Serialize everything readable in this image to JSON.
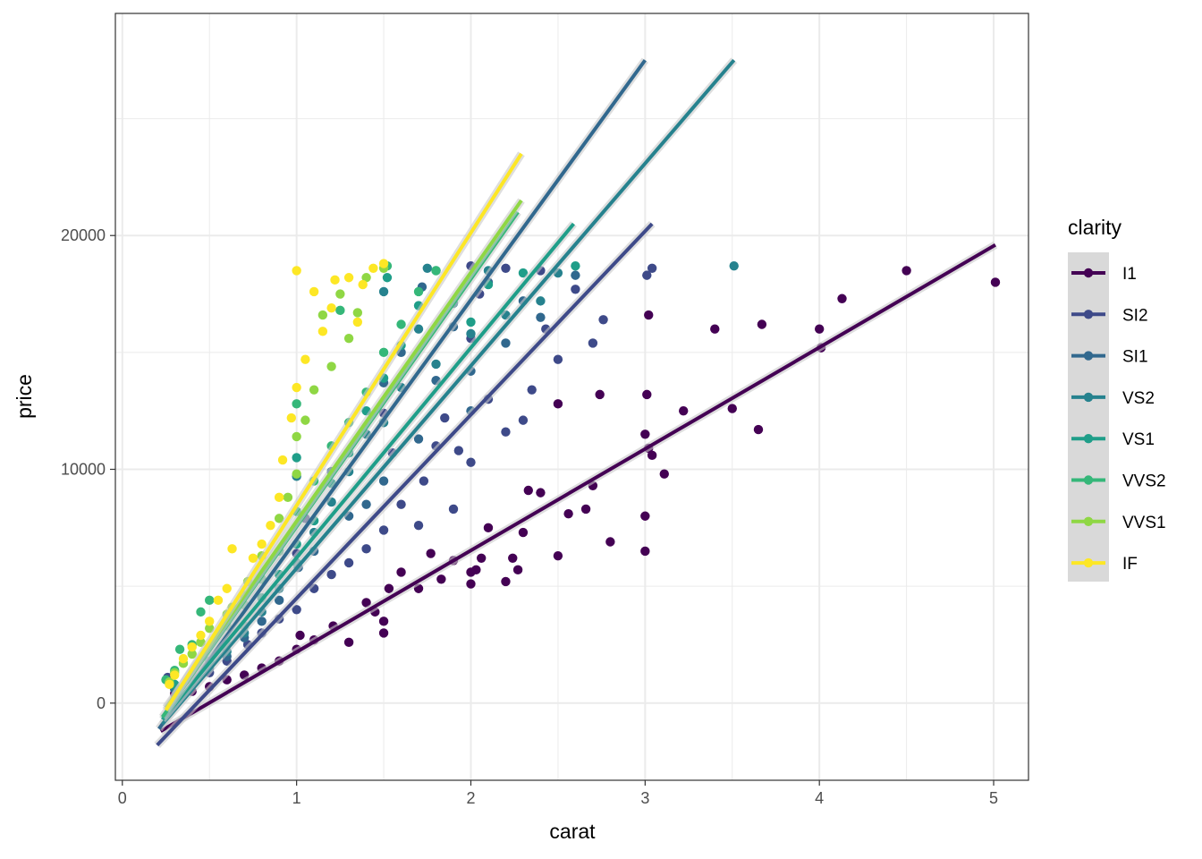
{
  "chart_data": {
    "type": "scatter",
    "title": "",
    "xlabel": "carat",
    "ylabel": "price",
    "xlim": [
      -0.04,
      5.2
    ],
    "ylim": [
      -3300,
      29500
    ],
    "xticks": [
      0,
      1,
      2,
      3,
      4,
      5
    ],
    "xtick_labels": [
      "0",
      "1",
      "2",
      "3",
      "4",
      "5"
    ],
    "yticks": [
      0,
      10000,
      20000
    ],
    "ytick_labels": [
      "0",
      "10000",
      "20000"
    ],
    "grid": true,
    "legend": {
      "title": "clarity",
      "position": "right"
    },
    "series": [
      {
        "name": "I1",
        "color": "#440154",
        "fit": {
          "x": [
            0.22,
            5.01
          ],
          "y": [
            -1200,
            19600
          ]
        },
        "points": [
          [
            5.01,
            18000
          ],
          [
            4.5,
            18500
          ],
          [
            4.13,
            17300
          ],
          [
            4.01,
            15200
          ],
          [
            4.0,
            16000
          ],
          [
            3.67,
            16200
          ],
          [
            3.65,
            11700
          ],
          [
            3.5,
            12600
          ],
          [
            3.4,
            16000
          ],
          [
            3.22,
            12500
          ],
          [
            3.11,
            9800
          ],
          [
            3.04,
            10600
          ],
          [
            3.01,
            13200
          ],
          [
            3.02,
            10900
          ],
          [
            3.0,
            8000
          ],
          [
            3.0,
            6500
          ],
          [
            3.02,
            16600
          ],
          [
            3.0,
            11500
          ],
          [
            2.8,
            6900
          ],
          [
            2.74,
            13200
          ],
          [
            2.66,
            8300
          ],
          [
            2.7,
            9300
          ],
          [
            2.5,
            6300
          ],
          [
            2.56,
            8100
          ],
          [
            2.5,
            12800
          ],
          [
            2.4,
            9000
          ],
          [
            2.33,
            9100
          ],
          [
            2.3,
            7300
          ],
          [
            2.27,
            5700
          ],
          [
            2.24,
            6200
          ],
          [
            2.2,
            5200
          ],
          [
            2.1,
            7500
          ],
          [
            2.06,
            6200
          ],
          [
            2.03,
            5700
          ],
          [
            2.0,
            5100
          ],
          [
            2.0,
            5600
          ],
          [
            1.9,
            6100
          ],
          [
            1.83,
            5300
          ],
          [
            1.77,
            6400
          ],
          [
            1.7,
            4900
          ],
          [
            1.6,
            5600
          ],
          [
            1.53,
            4900
          ],
          [
            1.5,
            3000
          ],
          [
            1.5,
            3500
          ],
          [
            1.45,
            3900
          ],
          [
            1.4,
            4300
          ],
          [
            1.3,
            2600
          ],
          [
            1.21,
            3300
          ],
          [
            1.1,
            2700
          ],
          [
            1.02,
            2900
          ],
          [
            1.0,
            2300
          ],
          [
            0.9,
            1800
          ],
          [
            0.8,
            1500
          ],
          [
            0.7,
            1200
          ],
          [
            0.6,
            1000
          ],
          [
            0.5,
            700
          ],
          [
            0.4,
            500
          ],
          [
            0.3,
            400
          ]
        ]
      },
      {
        "name": "SI2",
        "color": "#3E4A89",
        "fit": {
          "x": [
            0.2,
            3.04
          ],
          "y": [
            -1800,
            20500
          ]
        },
        "points": [
          [
            3.04,
            18600
          ],
          [
            3.01,
            18300
          ],
          [
            2.76,
            16400
          ],
          [
            2.7,
            15400
          ],
          [
            2.6,
            17700
          ],
          [
            2.5,
            14700
          ],
          [
            2.43,
            16000
          ],
          [
            2.4,
            18500
          ],
          [
            2.35,
            13400
          ],
          [
            2.3,
            12100
          ],
          [
            2.2,
            11600
          ],
          [
            2.2,
            18600
          ],
          [
            2.1,
            13000
          ],
          [
            2.05,
            17500
          ],
          [
            2.0,
            15600
          ],
          [
            2.0,
            10300
          ],
          [
            2.0,
            18700
          ],
          [
            1.93,
            10800
          ],
          [
            1.9,
            8300
          ],
          [
            1.85,
            12200
          ],
          [
            1.8,
            11000
          ],
          [
            1.73,
            9500
          ],
          [
            1.7,
            7600
          ],
          [
            1.6,
            8500
          ],
          [
            1.55,
            10700
          ],
          [
            1.5,
            7400
          ],
          [
            1.5,
            12400
          ],
          [
            1.4,
            6600
          ],
          [
            1.3,
            6000
          ],
          [
            1.2,
            5500
          ],
          [
            1.1,
            4900
          ],
          [
            1.05,
            7900
          ],
          [
            1.0,
            4000
          ],
          [
            1.0,
            6400
          ],
          [
            0.9,
            3600
          ],
          [
            0.8,
            3000
          ],
          [
            0.72,
            2500
          ],
          [
            0.6,
            1800
          ],
          [
            0.5,
            1300
          ],
          [
            0.4,
            900
          ],
          [
            0.3,
            700
          ],
          [
            0.26,
            1100
          ]
        ]
      },
      {
        "name": "SI1",
        "color": "#31688E",
        "fit": {
          "x": [
            0.21,
            3.0
          ],
          "y": [
            -1100,
            27500
          ]
        },
        "points": [
          [
            2.6,
            18300
          ],
          [
            2.4,
            16500
          ],
          [
            2.3,
            17200
          ],
          [
            2.2,
            15400
          ],
          [
            2.1,
            18000
          ],
          [
            2.0,
            14200
          ],
          [
            2.0,
            12500
          ],
          [
            1.9,
            16100
          ],
          [
            1.8,
            13800
          ],
          [
            1.72,
            17800
          ],
          [
            1.7,
            11300
          ],
          [
            1.6,
            15000
          ],
          [
            1.5,
            9500
          ],
          [
            1.5,
            13700
          ],
          [
            1.4,
            8500
          ],
          [
            1.3,
            8000
          ],
          [
            1.2,
            9900
          ],
          [
            1.1,
            6500
          ],
          [
            1.01,
            5800
          ],
          [
            0.9,
            4400
          ],
          [
            0.8,
            3500
          ],
          [
            0.7,
            2800
          ],
          [
            0.6,
            2000
          ],
          [
            0.5,
            1500
          ],
          [
            0.4,
            1000
          ],
          [
            0.3,
            600
          ]
        ]
      },
      {
        "name": "VS2",
        "color": "#26828E",
        "fit": {
          "x": [
            0.23,
            3.51
          ],
          "y": [
            -900,
            27500
          ]
        },
        "points": [
          [
            3.51,
            18700
          ],
          [
            2.5,
            18400
          ],
          [
            2.4,
            17200
          ],
          [
            2.2,
            16600
          ],
          [
            2.1,
            18500
          ],
          [
            2.0,
            15800
          ],
          [
            1.9,
            17100
          ],
          [
            1.8,
            14500
          ],
          [
            1.75,
            18600
          ],
          [
            1.7,
            16000
          ],
          [
            1.6,
            13500
          ],
          [
            1.5,
            12000
          ],
          [
            1.5,
            17600
          ],
          [
            1.4,
            11500
          ],
          [
            1.3,
            9900
          ],
          [
            1.2,
            8600
          ],
          [
            1.1,
            7300
          ],
          [
            1.0,
            6000
          ],
          [
            1.0,
            9700
          ],
          [
            0.9,
            4900
          ],
          [
            0.8,
            3900
          ],
          [
            0.7,
            3000
          ],
          [
            0.6,
            2200
          ],
          [
            0.5,
            1600
          ],
          [
            0.4,
            1100
          ],
          [
            0.3,
            700
          ]
        ]
      },
      {
        "name": "VS1",
        "color": "#1F9E89",
        "fit": {
          "x": [
            0.23,
            2.59
          ],
          "y": [
            -700,
            20500
          ]
        },
        "points": [
          [
            2.6,
            18700
          ],
          [
            2.3,
            18400
          ],
          [
            2.1,
            17900
          ],
          [
            2.0,
            16300
          ],
          [
            1.8,
            18500
          ],
          [
            1.7,
            17000
          ],
          [
            1.6,
            15300
          ],
          [
            1.52,
            18200
          ],
          [
            1.5,
            13900
          ],
          [
            1.4,
            12500
          ],
          [
            1.3,
            10700
          ],
          [
            1.2,
            9400
          ],
          [
            1.1,
            7800
          ],
          [
            1.0,
            6800
          ],
          [
            1.0,
            10500
          ],
          [
            0.9,
            5500
          ],
          [
            0.8,
            4500
          ],
          [
            0.7,
            3300
          ],
          [
            0.6,
            2500
          ],
          [
            0.5,
            1800
          ],
          [
            0.4,
            1200
          ],
          [
            0.3,
            800
          ]
        ]
      },
      {
        "name": "VVS2",
        "color": "#35B779",
        "fit": {
          "x": [
            0.23,
            2.27
          ],
          "y": [
            -600,
            21000
          ]
        },
        "points": [
          [
            1.8,
            18500
          ],
          [
            1.7,
            17600
          ],
          [
            1.6,
            16200
          ],
          [
            1.52,
            18700
          ],
          [
            1.5,
            15000
          ],
          [
            1.4,
            13300
          ],
          [
            1.3,
            12000
          ],
          [
            1.25,
            16800
          ],
          [
            1.2,
            11000
          ],
          [
            1.1,
            9500
          ],
          [
            1.0,
            8200
          ],
          [
            1.0,
            12800
          ],
          [
            0.9,
            6500
          ],
          [
            0.8,
            5300
          ],
          [
            0.7,
            4200
          ],
          [
            0.6,
            3300
          ],
          [
            0.5,
            4400
          ],
          [
            0.45,
            3900
          ],
          [
            0.4,
            2500
          ],
          [
            0.33,
            2300
          ],
          [
            0.3,
            1400
          ],
          [
            0.25,
            1000
          ]
        ]
      },
      {
        "name": "VVS1",
        "color": "#8FD744",
        "fit": {
          "x": [
            0.25,
            2.29
          ],
          "y": [
            -200,
            21500
          ]
        },
        "points": [
          [
            1.5,
            18600
          ],
          [
            1.4,
            18200
          ],
          [
            1.35,
            16700
          ],
          [
            1.3,
            15600
          ],
          [
            1.25,
            17500
          ],
          [
            1.2,
            14400
          ],
          [
            1.15,
            16600
          ],
          [
            1.1,
            13400
          ],
          [
            1.05,
            12100
          ],
          [
            1.0,
            11400
          ],
          [
            1.0,
            9800
          ],
          [
            0.95,
            8800
          ],
          [
            0.9,
            7900
          ],
          [
            0.8,
            6300
          ],
          [
            0.72,
            5200
          ],
          [
            0.7,
            4600
          ],
          [
            0.63,
            4100
          ],
          [
            0.6,
            3800
          ],
          [
            0.5,
            3200
          ],
          [
            0.45,
            2600
          ],
          [
            0.4,
            2100
          ],
          [
            0.35,
            1700
          ],
          [
            0.3,
            1300
          ],
          [
            0.27,
            900
          ]
        ]
      },
      {
        "name": "IF",
        "color": "#FDE725",
        "fit": {
          "x": [
            0.25,
            2.29
          ],
          "y": [
            -300,
            23500
          ]
        },
        "points": [
          [
            1.5,
            18800
          ],
          [
            1.44,
            18600
          ],
          [
            1.38,
            17900
          ],
          [
            1.35,
            16300
          ],
          [
            1.3,
            18200
          ],
          [
            1.22,
            18100
          ],
          [
            1.2,
            16900
          ],
          [
            1.15,
            15900
          ],
          [
            1.1,
            17600
          ],
          [
            1.05,
            14700
          ],
          [
            1.0,
            18500
          ],
          [
            1.0,
            13500
          ],
          [
            0.97,
            12200
          ],
          [
            0.92,
            10400
          ],
          [
            0.9,
            8800
          ],
          [
            0.85,
            7600
          ],
          [
            0.8,
            6800
          ],
          [
            0.75,
            6200
          ],
          [
            0.63,
            6600
          ],
          [
            0.6,
            4900
          ],
          [
            0.55,
            4400
          ],
          [
            0.5,
            3500
          ],
          [
            0.45,
            2900
          ],
          [
            0.4,
            2400
          ],
          [
            0.35,
            1900
          ],
          [
            0.3,
            1200
          ],
          [
            0.27,
            800
          ]
        ]
      }
    ]
  }
}
